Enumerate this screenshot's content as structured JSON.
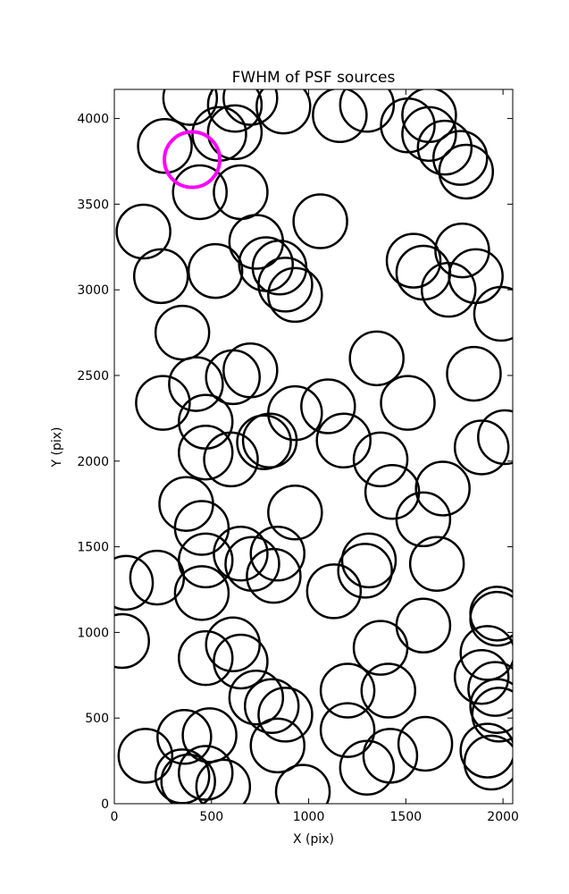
{
  "chart_data": {
    "type": "scatter",
    "title": "FWHM of PSF sources",
    "xlabel": "X (pix)",
    "ylabel": "Y (pix)",
    "xlim": [
      0,
      2050
    ],
    "ylim": [
      0,
      4170
    ],
    "xticks": [
      0,
      500,
      1000,
      1500,
      2000
    ],
    "yticks": [
      0,
      500,
      1000,
      1500,
      2000,
      2500,
      3000,
      3500,
      4000
    ],
    "series": [
      {
        "color": "#000000",
        "x": [
          390,
          620,
          700,
          870,
          1160,
          1300,
          1510,
          1620,
          1620,
          1700,
          1780,
          1810,
          260,
          540,
          620,
          440,
          650,
          1060,
          150,
          730,
          780,
          850,
          880,
          930,
          240,
          520,
          1540,
          1590,
          1720,
          1790,
          1860,
          1990,
          350,
          1350,
          420,
          610,
          700,
          250,
          1850,
          470,
          1510,
          1100,
          930,
          770,
          800,
          2010,
          1890,
          1180,
          470,
          600,
          1370,
          1430,
          1690,
          370,
          930,
          1590,
          450,
          650,
          840,
          470,
          710,
          820,
          1310,
          1290,
          1660,
          60,
          220,
          450,
          1130,
          1970,
          1970,
          1590,
          40,
          610,
          650,
          1920,
          1370,
          470,
          730,
          810,
          880,
          1890,
          1960,
          1970,
          1980,
          1200,
          1410,
          1200,
          360,
          490,
          840,
          1420,
          1600,
          1920,
          1940,
          160,
          1300,
          350,
          380,
          470,
          560,
          970
        ],
        "y": [
          4120,
          4080,
          4120,
          4070,
          4020,
          4080,
          3960,
          4020,
          3910,
          3830,
          3770,
          3690,
          3840,
          3910,
          3920,
          3570,
          3570,
          3400,
          3340,
          3280,
          3150,
          3130,
          3030,
          2970,
          3080,
          3110,
          3170,
          3100,
          3000,
          3230,
          3080,
          2860,
          2750,
          2600,
          2450,
          2490,
          2530,
          2340,
          2510,
          2230,
          2340,
          2320,
          2280,
          2110,
          2120,
          2140,
          2080,
          2120,
          2050,
          2010,
          2010,
          1820,
          1840,
          1750,
          1700,
          1660,
          1610,
          1460,
          1460,
          1420,
          1400,
          1330,
          1420,
          1360,
          1400,
          1290,
          1320,
          1230,
          1240,
          1110,
          1080,
          1040,
          950,
          930,
          830,
          880,
          910,
          850,
          620,
          570,
          520,
          740,
          670,
          570,
          520,
          660,
          660,
          430,
          390,
          400,
          340,
          280,
          350,
          310,
          240,
          280,
          210,
          160,
          130,
          180,
          100,
          70
        ]
      },
      {
        "color": "#ff00ff",
        "x": [
          400
        ],
        "y": [
          3760
        ]
      }
    ]
  }
}
